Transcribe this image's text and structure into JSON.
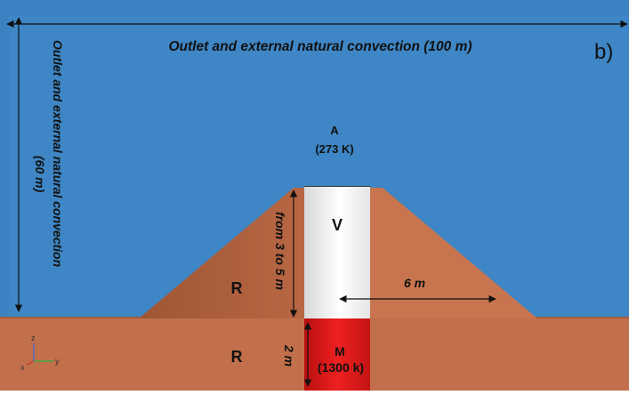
{
  "panel_label": "b)",
  "boundaries": {
    "top_label": "Outlet and external natural convection (100 m)",
    "left_label_line1": "Outlet and external natural convection",
    "left_label_line2": "(60 m)"
  },
  "atmosphere": {
    "name": "A",
    "temperature": "(273 K)"
  },
  "regions": {
    "vent": "V",
    "rock_cone": "R",
    "rock_base": "R",
    "magma_name": "M",
    "magma_temperature": "(1300 k)"
  },
  "dimensions": {
    "cone_height": "from 3 to 5 m",
    "cone_radius": "6 m",
    "magma_depth": "2 m"
  },
  "axes_triad": {
    "z": "z",
    "y": "y",
    "x": "x"
  },
  "colors": {
    "atmosphere": "#3b82c2",
    "rock": "#c1704b",
    "vent": "#f4f4f4",
    "magma": "#d81c1c",
    "arrow": "#111111"
  }
}
